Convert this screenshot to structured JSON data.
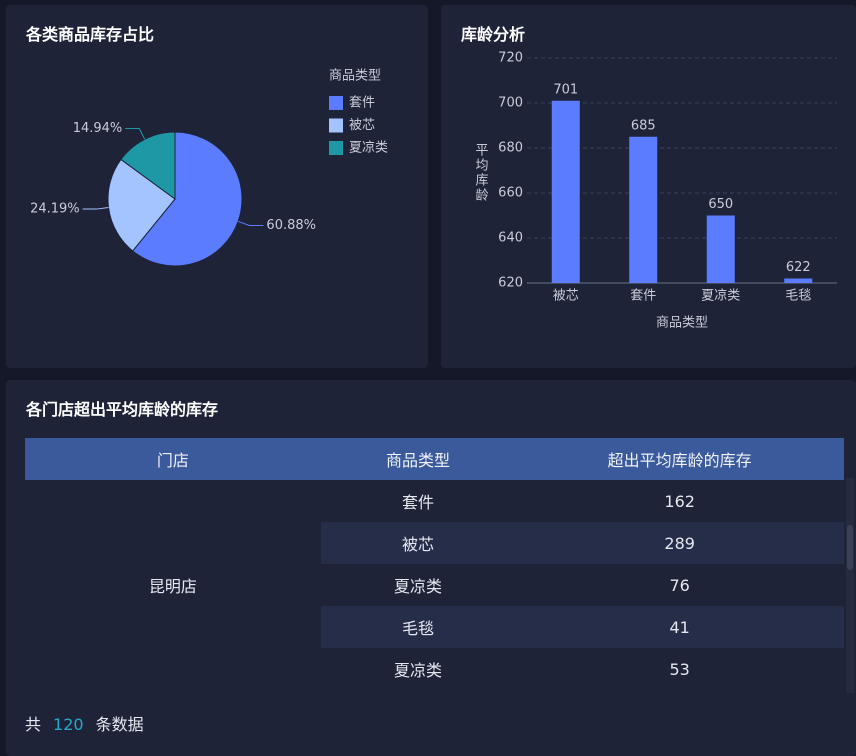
{
  "pie_panel": {
    "title": "各类商品库存占比",
    "chart_data": {
      "type": "pie",
      "legend_title": "商品类型",
      "categories": [
        "套件",
        "被芯",
        "夏凉类"
      ],
      "values": [
        60.88,
        24.19,
        14.94
      ],
      "value_labels": [
        "60.88%",
        "24.19%",
        "14.94%"
      ],
      "colors": [
        "#5b7cff",
        "#a3c4ff",
        "#1e98a4"
      ]
    }
  },
  "bar_panel": {
    "title": "库龄分析",
    "chart_data": {
      "type": "bar",
      "x_label": "商品类型",
      "y_label": "平均库龄",
      "categories": [
        "被芯",
        "套件",
        "夏凉类",
        "毛毯"
      ],
      "values": [
        701,
        685,
        650,
        622
      ],
      "color": "#5b7cff",
      "ylim": [
        620,
        720
      ],
      "yticks": [
        620,
        640,
        660,
        680,
        700,
        720
      ],
      "grid": true
    }
  },
  "table_panel": {
    "title": "各门店超出平均库龄的库存",
    "table": {
      "columns": [
        "门店",
        "商品类型",
        "超出平均库龄的库存"
      ],
      "store": "昆明店",
      "rows": [
        [
          "套件",
          162
        ],
        [
          "被芯",
          289
        ],
        [
          "夏凉类",
          76
        ],
        [
          "毛毯",
          41
        ],
        [
          "夏凉类",
          53
        ]
      ]
    },
    "footer": {
      "prefix": "共",
      "count": 120,
      "suffix": "条数据"
    }
  }
}
